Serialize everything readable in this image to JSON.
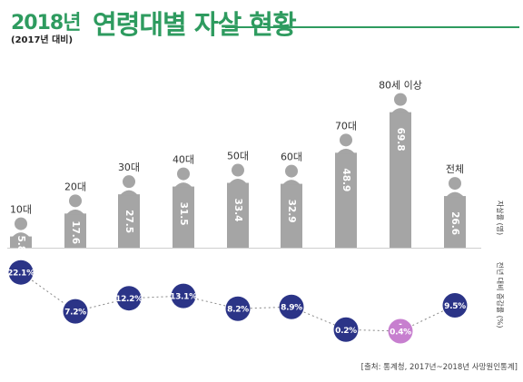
{
  "header": {
    "year_title": "2018년",
    "subtitle": "(2017년 대비)",
    "main_title": "연령대별 자살 현황"
  },
  "labels": {
    "rate_axis": "자살률 (명)",
    "change_axis": "전년 대비 증감률 (%)"
  },
  "source": "[출처: 통계청, 2017년~2018년 사망원인통계]",
  "colors": {
    "brand_green": "#2e9b5f",
    "bar_gray": "#a5a5a5",
    "dot_navy": "#2b3487",
    "dot_negative": "#c77fcf"
  },
  "chart_data": [
    {
      "type": "bar",
      "categories": [
        "10대",
        "20대",
        "30대",
        "40대",
        "50대",
        "60대",
        "70대",
        "80세 이상",
        "전체"
      ],
      "values": [
        5.8,
        17.6,
        27.5,
        31.5,
        33.4,
        32.9,
        48.9,
        69.8,
        26.6
      ],
      "value_labels": [
        "5.8",
        "17.6",
        "27.5",
        "31.5",
        "33.4",
        "32.9",
        "48.9",
        "69.8",
        "26.6"
      ],
      "ylabel": "자살률 (명)",
      "ylim": [
        0,
        75
      ],
      "grid": false
    },
    {
      "type": "line",
      "categories": [
        "10대",
        "20대",
        "30대",
        "40대",
        "50대",
        "60대",
        "70대",
        "80세 이상",
        "전체"
      ],
      "values": [
        22.1,
        7.2,
        12.2,
        13.1,
        8.2,
        8.9,
        0.2,
        -0.4,
        9.5
      ],
      "value_labels": [
        "22.1%",
        "7.2%",
        "12.2%",
        "13.1%",
        "8.2%",
        "8.9%",
        "0.2%",
        "0.4%",
        "9.5%"
      ],
      "negative_marker": "-",
      "ylabel": "전년 대비 증감률 (%)",
      "line_style": "dashed",
      "grid": false
    }
  ]
}
